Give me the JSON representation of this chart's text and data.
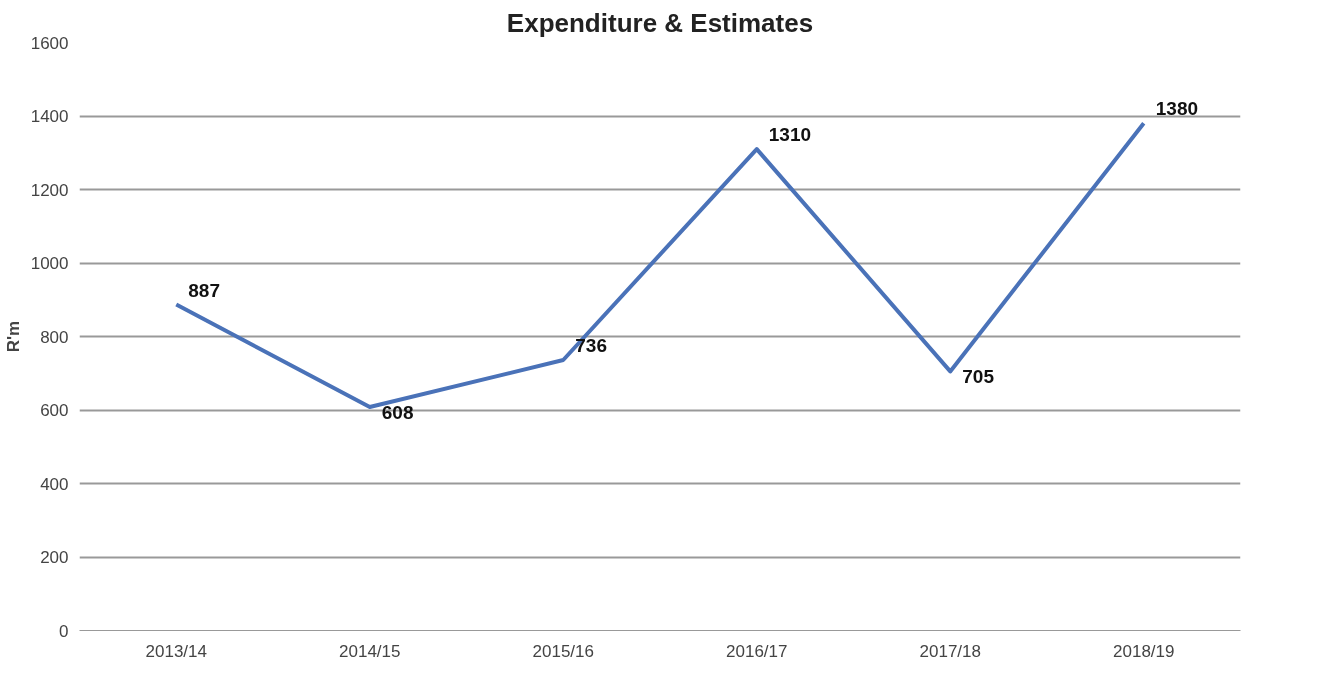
{
  "chart_data": {
    "type": "line",
    "title": "Expenditure & Estimates",
    "ylabel": "R'm",
    "categories": [
      "2013/14",
      "2014/15",
      "2015/16",
      "2016/17",
      "2017/18",
      "2018/19"
    ],
    "series": [
      {
        "color": "#4a72b8",
        "values": [
          887,
          608,
          736,
          1310,
          705,
          1380
        ]
      }
    ],
    "ylim": [
      0,
      1600
    ],
    "yticks": [
      0,
      200,
      400,
      600,
      800,
      1000,
      1200,
      1400,
      1600
    ],
    "grid": "y",
    "data_labels": true,
    "marker": "none",
    "line_style": "solid"
  }
}
